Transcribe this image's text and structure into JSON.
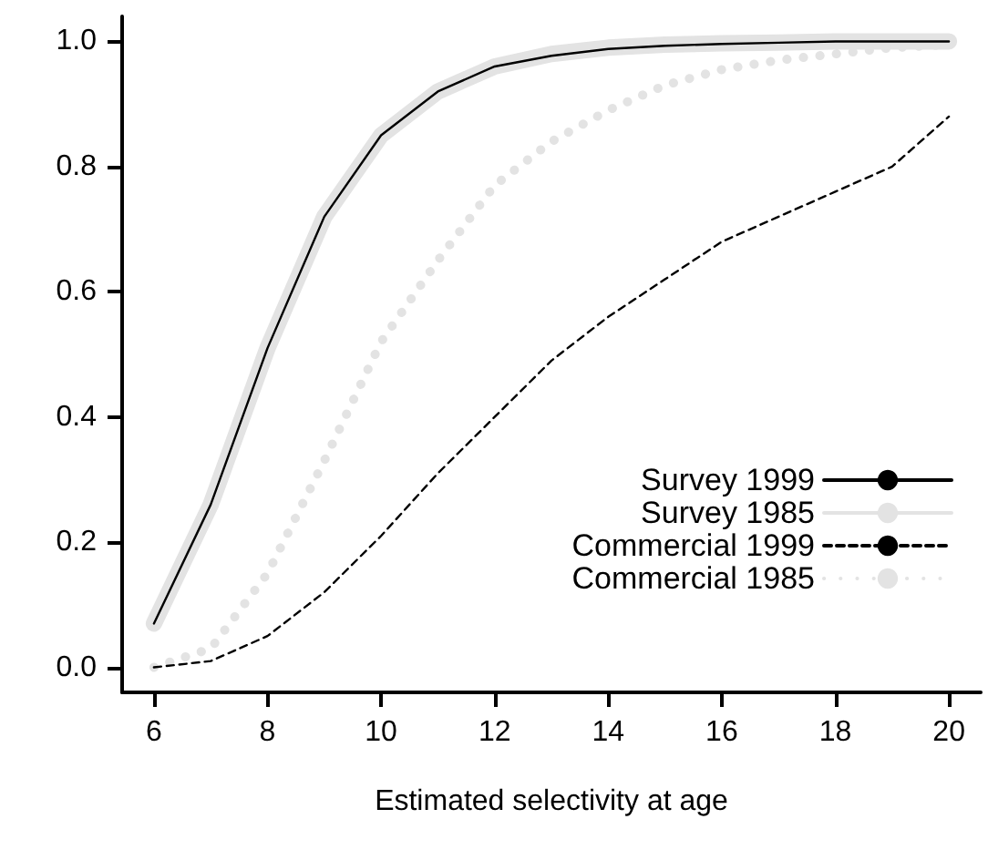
{
  "chart_data": {
    "type": "line",
    "xlabel": "Estimated selectivity at age",
    "x": [
      6,
      7,
      8,
      9,
      10,
      11,
      12,
      13,
      14,
      15,
      16,
      17,
      18,
      19,
      20
    ],
    "xlim": [
      5.44,
      20.56
    ],
    "xticks": [
      6,
      8,
      10,
      12,
      14,
      16,
      18,
      20
    ],
    "ylim": [
      -0.04,
      1.04
    ],
    "yticks": [
      {
        "value": 0,
        "label": "0.0"
      },
      {
        "value": 0.2,
        "label": "0.2"
      },
      {
        "value": 0.4,
        "label": "0.4"
      },
      {
        "value": 0.6,
        "label": "0.6"
      },
      {
        "value": 0.8,
        "label": "0.8"
      },
      {
        "value": 1,
        "label": "1.0"
      }
    ],
    "grid": false,
    "legend": "bottom right",
    "marker": "none",
    "series": [
      {
        "name": "Survey 1999",
        "color": "#000000",
        "line_style": "solid",
        "values": [
          0.07,
          0.26,
          0.51,
          0.72,
          0.85,
          0.92,
          0.96,
          0.977,
          0.988,
          0.993,
          0.996,
          0.998,
          1.0,
          1.0,
          1.0
        ]
      },
      {
        "name": "Survey 1985",
        "color": "#e3e3e3",
        "line_style": "solid",
        "values": [
          0.07,
          0.26,
          0.51,
          0.72,
          0.85,
          0.92,
          0.96,
          0.98,
          0.99,
          0.995,
          0.997,
          0.998,
          1.0,
          1.0,
          1.0
        ]
      },
      {
        "name": "Commercial 1999",
        "color": "#000000",
        "line_style": "dashed",
        "values": [
          0.0,
          0.01,
          0.05,
          0.12,
          0.21,
          0.31,
          0.4,
          0.49,
          0.56,
          0.62,
          0.68,
          0.72,
          0.76,
          0.8,
          0.88
        ]
      },
      {
        "name": "Commercial 1985",
        "color": "#e3e3e3",
        "line_style": "dotted",
        "values": [
          0.0,
          0.03,
          0.15,
          0.33,
          0.52,
          0.65,
          0.77,
          0.84,
          0.89,
          0.93,
          0.955,
          0.97,
          0.98,
          0.99,
          0.995
        ]
      }
    ]
  }
}
